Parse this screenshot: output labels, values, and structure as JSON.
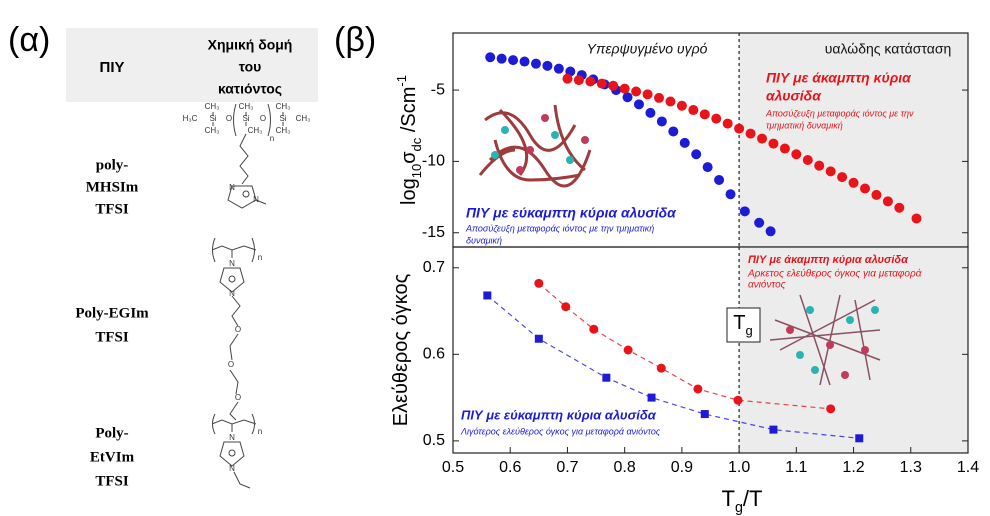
{
  "panel_labels": [
    "(α)",
    "(β)"
  ],
  "table": {
    "header": {
      "col1": "ΠΙΥ",
      "col2": [
        "Χημική δομή",
        "του",
        "κατιόντος"
      ]
    },
    "rows": [
      {
        "name": [
          "poly-",
          "MHSIm",
          "TFSI"
        ],
        "structure": [
          "CH₃",
          "CH₃",
          "CH₃",
          "H₃C",
          "Si",
          "O",
          "Si",
          "O",
          "Si",
          "CH₃",
          "CH₃",
          "CH₃",
          "CH₃",
          "n",
          "N",
          "N"
        ]
      },
      {
        "name": [
          "Poly-EGIm",
          "TFSI"
        ],
        "structure": [
          "n",
          "N",
          "N",
          "O",
          "O",
          "O"
        ]
      },
      {
        "name": [
          "Poly-",
          "EtVIm",
          "TFSI"
        ],
        "structure": [
          "n",
          "N",
          "N"
        ]
      }
    ]
  },
  "chart_data": [
    {
      "type": "scatter",
      "ylabel": [
        {
          "text": "log"
        },
        {
          "text": "10",
          "script": "sub"
        },
        {
          "text": "σ"
        },
        {
          "text": "dc",
          "script": "sub"
        },
        {
          "text": " /Scm"
        },
        {
          "text": "-1",
          "script": "sup"
        }
      ],
      "xlim": [
        0.5,
        1.4
      ],
      "ylim": [
        -16,
        -1
      ],
      "yticks": [
        -5,
        -10,
        -15
      ],
      "shaded_region": [
        1.0,
        1.4
      ],
      "vline": 1.0,
      "series": [
        {
          "name": "ΠΙΥ με εύκαμπτη κύρια αλυσίδα",
          "color": "#1c1cd6",
          "marker": "circle",
          "x": [
            0.565,
            0.585,
            0.605,
            0.625,
            0.645,
            0.665,
            0.685,
            0.705,
            0.725,
            0.745,
            0.765,
            0.785,
            0.805,
            0.825,
            0.845,
            0.865,
            0.885,
            0.905,
            0.925,
            0.945,
            0.965,
            0.985,
            1.01,
            1.035,
            1.055
          ],
          "values": [
            -2.7,
            -2.8,
            -2.9,
            -3.0,
            -3.15,
            -3.3,
            -3.5,
            -3.7,
            -3.95,
            -4.25,
            -4.6,
            -5.0,
            -5.5,
            -6.0,
            -6.6,
            -7.2,
            -7.9,
            -8.7,
            -9.5,
            -10.4,
            -11.3,
            -12.3,
            -13.5,
            -14.3,
            -14.9
          ]
        },
        {
          "name": "ΠΙΥ με άκαμπτη κύρια αλυσίδα",
          "color": "#e8141a",
          "marker": "circle",
          "x": [
            0.7,
            0.72,
            0.74,
            0.76,
            0.78,
            0.8,
            0.82,
            0.84,
            0.86,
            0.88,
            0.9,
            0.92,
            0.94,
            0.96,
            0.98,
            1.0,
            1.02,
            1.04,
            1.06,
            1.08,
            1.1,
            1.12,
            1.14,
            1.16,
            1.18,
            1.2,
            1.22,
            1.24,
            1.26,
            1.28,
            1.31
          ],
          "values": [
            -4.2,
            -4.3,
            -4.4,
            -4.55,
            -4.7,
            -4.9,
            -5.1,
            -5.3,
            -5.55,
            -5.8,
            -6.1,
            -6.4,
            -6.7,
            -7.0,
            -7.35,
            -7.7,
            -8.05,
            -8.4,
            -8.75,
            -9.1,
            -9.5,
            -9.9,
            -10.3,
            -10.7,
            -11.1,
            -11.5,
            -11.9,
            -12.35,
            -12.8,
            -13.25,
            -14.0
          ]
        }
      ],
      "annotations": [
        {
          "text": "Υπερψυγμένο υγρό",
          "color": "#111111"
        },
        {
          "text": "υαλώδης κατάσταση",
          "color": "#111111"
        },
        {
          "text": "ΠΙΥ με άκαμπτη κύρια",
          "color": "#e8141a"
        },
        {
          "text": "αλυσίδα",
          "color": "#e8141a"
        },
        {
          "text": "Αποσύζευξη μεταφοράς ιόντος με την",
          "color": "#e8141a"
        },
        {
          "text": "τμηματική δυναμική",
          "color": "#e8141a"
        },
        {
          "text": "ΠΙΥ με εύκαμπτη κύρια αλυσίδα",
          "color": "#1c1cd6"
        },
        {
          "text": "Αποσύζευξη μεταφοράς ιόντος με την τμηματική",
          "color": "#1c1cd6"
        },
        {
          "text": "δυναμική",
          "color": "#1c1cd6"
        }
      ]
    },
    {
      "type": "scatter",
      "ylabel": [
        {
          "text": "Ελεύθερος όγκος"
        }
      ],
      "xlabel": [
        {
          "text": "T"
        },
        {
          "text": "g",
          "script": "sub"
        },
        {
          "text": "/T"
        }
      ],
      "xlim": [
        0.5,
        1.4
      ],
      "ylim": [
        0.486,
        0.724
      ],
      "xticks": [
        0.5,
        0.6,
        0.7,
        0.8,
        0.9,
        {
          "value": 1,
          "label": "1.0"
        },
        1.1,
        1.2,
        1.3,
        1.4
      ],
      "yticks": [
        0.5,
        0.6,
        0.7
      ],
      "shaded_region": [
        1.0,
        1.4
      ],
      "vline": 1.0,
      "tg_label": [
        {
          "text": "T"
        },
        {
          "text": "g",
          "script": "sub"
        }
      ],
      "series": [
        {
          "name": "ΠΙΥ με εύκαμπτη κύρια αλυσίδα",
          "color": "#1c1cd6",
          "marker": "square",
          "fit": true,
          "x": [
            0.56,
            0.65,
            0.768,
            0.847,
            0.94,
            1.06,
            1.21
          ],
          "values": [
            0.668,
            0.618,
            0.573,
            0.55,
            0.531,
            0.513,
            0.503
          ]
        },
        {
          "name": "ΠΙΥ με άκαμπτη κύρια αλυσίδα",
          "color": "#e8141a",
          "marker": "circle",
          "fit": true,
          "x": [
            0.65,
            0.697,
            0.746,
            0.806,
            0.864,
            0.928,
            0.998,
            1.16
          ],
          "values": [
            0.682,
            0.655,
            0.629,
            0.605,
            0.584,
            0.56,
            0.547,
            0.537
          ]
        }
      ],
      "annotations": [
        {
          "text": "ΠΙΥ με άκαμπτη κύρια αλυσίδα",
          "color": "#e8141a"
        },
        {
          "text": "Αρκετος ελεύθερος όγκος για μεταφορά",
          "color": "#e8141a"
        },
        {
          "text": "ανιόντος",
          "color": "#e8141a"
        },
        {
          "text": "ΠΙΥ με εύκαμπτη κύρια αλυσίδα",
          "color": "#1c1cd6"
        },
        {
          "text": "Λιγότερος ελεύθερος όγκος για μεταφορά ανιόντος",
          "color": "#1c1cd6"
        }
      ]
    }
  ]
}
